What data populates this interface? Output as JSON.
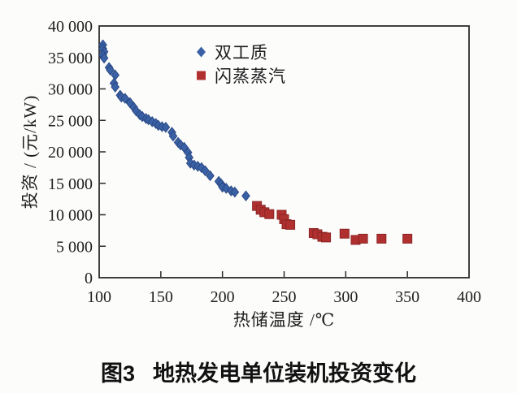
{
  "figure": {
    "caption_prefix": "图3",
    "caption_text": "地热发电单位装机投资变化"
  },
  "chart_data": {
    "type": "scatter",
    "xlabel": "热储温度 /℃",
    "ylabel": "投资 / (元/kW)",
    "xlim": [
      100,
      400
    ],
    "ylim": [
      0,
      40000
    ],
    "grid": false,
    "legend_position": "top-center-inside",
    "axis_color": "#2b2b2b",
    "xticks": [
      {
        "v": 100,
        "label": "100"
      },
      {
        "v": 150,
        "label": "150"
      },
      {
        "v": 200,
        "label": "200"
      },
      {
        "v": 250,
        "label": "250"
      },
      {
        "v": 300,
        "label": "300"
      },
      {
        "v": 350,
        "label": "350"
      },
      {
        "v": 400,
        "label": "400"
      }
    ],
    "yticks": [
      {
        "v": 0,
        "label": "0"
      },
      {
        "v": 5000,
        "label": "5 000"
      },
      {
        "v": 10000,
        "label": "10 000"
      },
      {
        "v": 15000,
        "label": "15 000"
      },
      {
        "v": 20000,
        "label": "20 000"
      },
      {
        "v": 25000,
        "label": "25 000"
      },
      {
        "v": 30000,
        "label": "30 000"
      },
      {
        "v": 35000,
        "label": "35 000"
      },
      {
        "v": 40000,
        "label": "40 000"
      }
    ],
    "series": [
      {
        "id": "binary",
        "name": "双工质",
        "marker": "diamond",
        "color": "#3a61a5",
        "edge": "#2b4a85",
        "points": [
          [
            103,
            37000
          ],
          [
            103,
            36400
          ],
          [
            104,
            35900
          ],
          [
            103,
            35400
          ],
          [
            104,
            34900
          ],
          [
            108,
            33400
          ],
          [
            109,
            33000
          ],
          [
            113,
            32200
          ],
          [
            112,
            30900
          ],
          [
            113,
            30300
          ],
          [
            117,
            29000
          ],
          [
            118,
            28700
          ],
          [
            121,
            28500
          ],
          [
            125,
            27800
          ],
          [
            128,
            27100
          ],
          [
            130,
            26500
          ],
          [
            133,
            25900
          ],
          [
            135,
            25600
          ],
          [
            138,
            25300
          ],
          [
            140,
            25100
          ],
          [
            143,
            24800
          ],
          [
            146,
            24500
          ],
          [
            148,
            24200
          ],
          [
            151,
            24000
          ],
          [
            154,
            23900
          ],
          [
            159,
            23100
          ],
          [
            160,
            22500
          ],
          [
            164,
            21500
          ],
          [
            166,
            21100
          ],
          [
            169,
            20700
          ],
          [
            172,
            19900
          ],
          [
            173,
            19100
          ],
          [
            174,
            18200
          ],
          [
            177,
            17900
          ],
          [
            180,
            17700
          ],
          [
            183,
            17500
          ],
          [
            186,
            17000
          ],
          [
            190,
            16200
          ],
          [
            197,
            15300
          ],
          [
            199,
            14900
          ],
          [
            200,
            14400
          ],
          [
            203,
            14200
          ],
          [
            207,
            13800
          ],
          [
            210,
            13600
          ],
          [
            219,
            13000
          ]
        ]
      },
      {
        "id": "flash",
        "name": "闪蒸蒸汽",
        "marker": "square",
        "color": "#b03030",
        "edge": "#8c2424",
        "points": [
          [
            228,
            11400
          ],
          [
            231,
            10800
          ],
          [
            234,
            10400
          ],
          [
            238,
            10100
          ],
          [
            248,
            10000
          ],
          [
            250,
            9300
          ],
          [
            252,
            8500
          ],
          [
            255,
            8400
          ],
          [
            274,
            7100
          ],
          [
            277,
            6900
          ],
          [
            281,
            6500
          ],
          [
            284,
            6400
          ],
          [
            299,
            7000
          ],
          [
            308,
            6000
          ],
          [
            314,
            6200
          ],
          [
            329,
            6200
          ],
          [
            350,
            6200
          ]
        ]
      }
    ]
  }
}
